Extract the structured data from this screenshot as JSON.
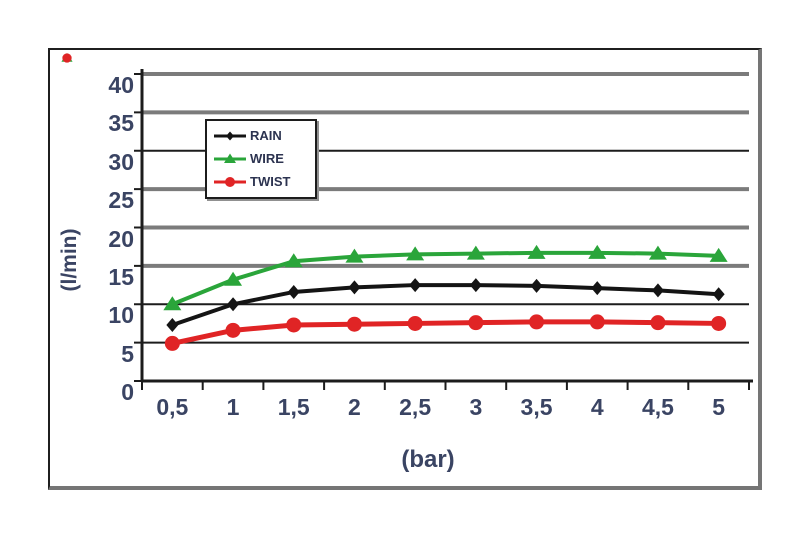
{
  "chart_data": {
    "type": "line",
    "title": "",
    "xlabel": "(bar)",
    "ylabel": "(l/min)",
    "x": [
      0.5,
      1,
      1.5,
      2,
      2.5,
      3,
      3.5,
      4,
      4.5,
      5
    ],
    "x_tick_labels": [
      "0,5",
      "1",
      "1,5",
      "2",
      "2,5",
      "3",
      "3,5",
      "4",
      "4,5",
      "5"
    ],
    "ylim": [
      0,
      40
    ],
    "y_ticks": [
      0,
      5,
      10,
      15,
      20,
      25,
      30,
      35,
      40
    ],
    "y_tick_labels": [
      "0",
      "5",
      "10",
      "15",
      "20",
      "25",
      "30",
      "35",
      "40"
    ],
    "grid": "horizontal-major",
    "legend_position": "upper-left-inside",
    "legend_entries": [
      "RAIN",
      "WIRE",
      "TWIST"
    ],
    "series": [
      {
        "name": "RAIN",
        "color": "#141414",
        "marker": "diamond",
        "values": [
          7.3,
          10.0,
          11.6,
          12.2,
          12.5,
          12.5,
          12.4,
          12.1,
          11.8,
          11.3
        ]
      },
      {
        "name": "WIRE",
        "color": "#2aa53a",
        "marker": "triangle-up",
        "values": [
          10.0,
          13.2,
          15.6,
          16.2,
          16.5,
          16.6,
          16.7,
          16.7,
          16.6,
          16.3
        ]
      },
      {
        "name": "TWIST",
        "color": "#e02425",
        "marker": "circle",
        "values": [
          4.9,
          6.6,
          7.3,
          7.4,
          7.5,
          7.6,
          7.7,
          7.7,
          7.6,
          7.5
        ]
      }
    ]
  },
  "colors": {
    "axis_text": "#3a4463",
    "legend_text": "#2c3350",
    "grid_gray": "#7b7b7b",
    "grid_black": "#1c1c1c",
    "axis_line": "#1c1c1c",
    "figure_border": "#1f1f1f",
    "figure_shadow": "#757575",
    "background": "#ffffff"
  }
}
